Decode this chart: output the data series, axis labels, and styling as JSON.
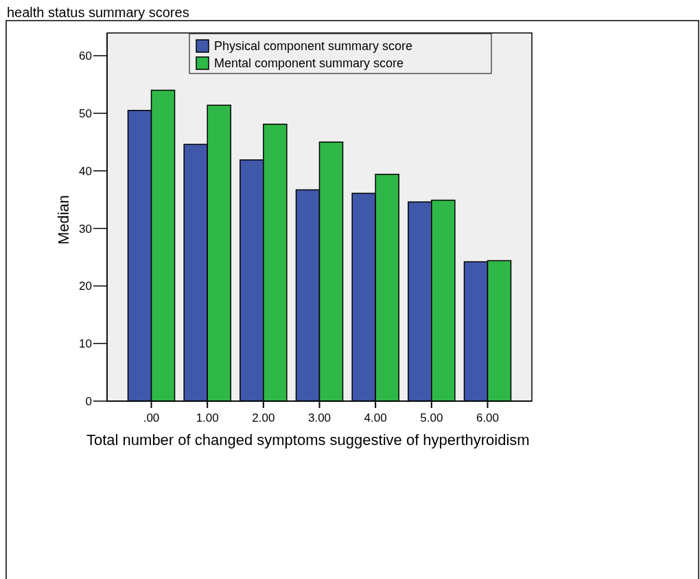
{
  "chart_data": {
    "type": "bar",
    "title": "health status summary scores",
    "xlabel": "Total number of changed symptoms suggestive of hyperthyroidism",
    "ylabel": "Median",
    "categories": [
      ".00",
      "1.00",
      "2.00",
      "3.00",
      "4.00",
      "5.00",
      "6.00"
    ],
    "series": [
      {
        "name": "Physical component summary score",
        "color": "#3f58aa",
        "values": [
          50.5,
          44.6,
          41.9,
          36.7,
          36.1,
          34.6,
          24.2
        ]
      },
      {
        "name": "Mental component summary score",
        "color": "#2fb848",
        "values": [
          54.0,
          51.4,
          48.1,
          45.0,
          39.4,
          34.9,
          24.4
        ]
      }
    ],
    "ylim": [
      0,
      63
    ],
    "yticks": [
      0,
      10,
      20,
      30,
      40,
      50,
      60
    ],
    "grid": false,
    "legend": "top"
  }
}
